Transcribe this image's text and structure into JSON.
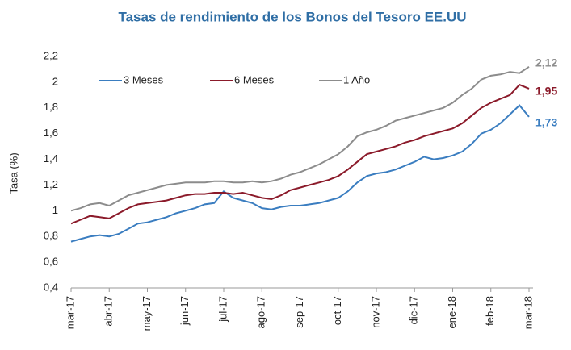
{
  "chart_data": {
    "type": "line",
    "title": "Tasas de rendimiento de los Bonos del Tesoro EE.UU",
    "y_label": "Tasa (%)",
    "legend": "top-left",
    "categories": [
      "mar-17",
      null,
      null,
      null,
      "abr-17",
      null,
      null,
      null,
      "may-17",
      null,
      null,
      null,
      "jun-17",
      null,
      null,
      null,
      "jul-17",
      null,
      null,
      null,
      "ago-17",
      null,
      null,
      null,
      "sep-17",
      null,
      null,
      null,
      "oct-17",
      null,
      null,
      null,
      "nov-17",
      null,
      null,
      null,
      "dic-17",
      null,
      null,
      null,
      "ene-18",
      null,
      null,
      null,
      "feb-18",
      null,
      null,
      null,
      "mar-18"
    ],
    "series": [
      {
        "name": "3 Meses",
        "color": "#3a7dc0",
        "values": [
          0.76,
          0.78,
          0.8,
          0.81,
          0.8,
          0.82,
          0.86,
          0.9,
          0.91,
          0.93,
          0.95,
          0.98,
          1.0,
          1.02,
          1.05,
          1.06,
          1.15,
          1.1,
          1.08,
          1.06,
          1.02,
          1.01,
          1.03,
          1.04,
          1.04,
          1.05,
          1.06,
          1.08,
          1.1,
          1.15,
          1.22,
          1.27,
          1.29,
          1.3,
          1.32,
          1.35,
          1.38,
          1.42,
          1.4,
          1.41,
          1.43,
          1.46,
          1.52,
          1.6,
          1.63,
          1.68,
          1.75,
          1.82,
          1.73
        ],
        "end_label": {
          "value": 1.73,
          "label": "1,73"
        }
      },
      {
        "name": "6 Meses",
        "color": "#8b1a2a",
        "values": [
          0.9,
          0.93,
          0.96,
          0.95,
          0.94,
          0.98,
          1.02,
          1.05,
          1.06,
          1.07,
          1.08,
          1.1,
          1.12,
          1.13,
          1.13,
          1.14,
          1.14,
          1.13,
          1.14,
          1.12,
          1.1,
          1.09,
          1.12,
          1.16,
          1.18,
          1.2,
          1.22,
          1.24,
          1.27,
          1.32,
          1.38,
          1.44,
          1.46,
          1.48,
          1.5,
          1.53,
          1.55,
          1.58,
          1.6,
          1.62,
          1.64,
          1.68,
          1.74,
          1.8,
          1.84,
          1.87,
          1.9,
          1.98,
          1.95
        ],
        "end_label": {
          "value": 1.95,
          "label": "1,95"
        }
      },
      {
        "name": "1 Año",
        "color": "#8c8c8c",
        "values": [
          1.0,
          1.02,
          1.05,
          1.06,
          1.04,
          1.08,
          1.12,
          1.14,
          1.16,
          1.18,
          1.2,
          1.21,
          1.22,
          1.22,
          1.22,
          1.23,
          1.23,
          1.22,
          1.22,
          1.23,
          1.22,
          1.23,
          1.25,
          1.28,
          1.3,
          1.33,
          1.36,
          1.4,
          1.44,
          1.5,
          1.58,
          1.61,
          1.63,
          1.66,
          1.7,
          1.72,
          1.74,
          1.76,
          1.78,
          1.8,
          1.84,
          1.9,
          1.95,
          2.02,
          2.05,
          2.06,
          2.08,
          2.07,
          2.12
        ],
        "end_label": {
          "value": 2.12,
          "label": "2,12"
        }
      }
    ],
    "ylim": [
      0.4,
      2.2
    ],
    "yticks": [
      {
        "value": 0.4,
        "label": "0,4"
      },
      {
        "value": 0.6,
        "label": "0,6"
      },
      {
        "value": 0.8,
        "label": "0,8"
      },
      1,
      {
        "value": 1.2,
        "label": "1,2"
      },
      {
        "value": 1.4,
        "label": "1,4"
      },
      {
        "value": 1.6,
        "label": "1,6"
      },
      {
        "value": 1.8,
        "label": "1,8"
      },
      2,
      {
        "value": 2.2,
        "label": "2,2"
      }
    ]
  }
}
